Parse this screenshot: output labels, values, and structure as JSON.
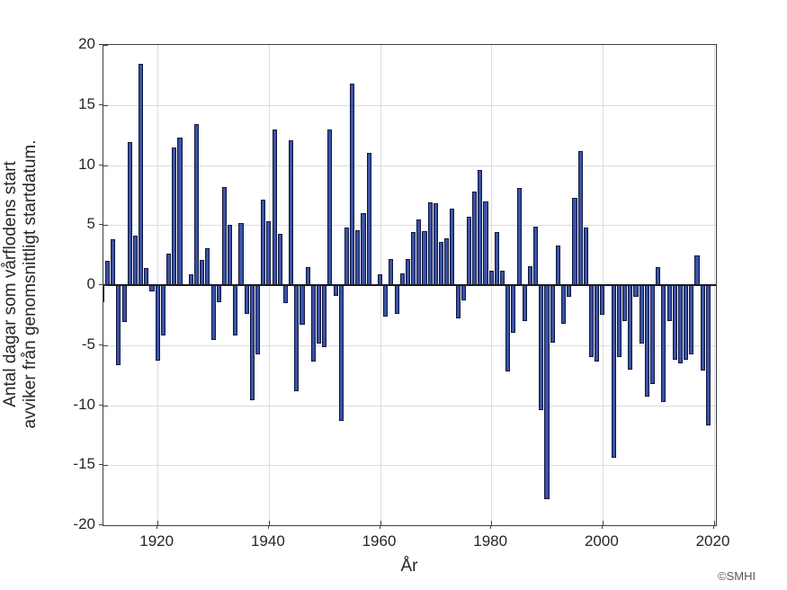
{
  "figure": {
    "ylabel_line1": "Antal dagar som vårflodens start",
    "ylabel_line2": "avviker från genomsnittligt startdatum.",
    "xlabel": "År",
    "copyright": "©SMHI"
  },
  "chart_data": {
    "type": "bar",
    "title": "",
    "xlabel": "År",
    "ylabel": "Antal dagar som vårflodens start avviker från genomsnittligt startdatum.",
    "ylim": [
      -20,
      20
    ],
    "xlim": [
      1910.26,
      2020.4
    ],
    "y_ticks": [
      20,
      15,
      10,
      5,
      0,
      -5,
      -10,
      -15,
      -20
    ],
    "x_ticks": [
      1920,
      1940,
      1960,
      1980,
      2000,
      2020
    ],
    "grid": true,
    "legend": "none",
    "bar_color": "#3A53A4",
    "bar_edge_color": "#10153E",
    "missing_years": [
      1925,
      1959,
      2001
    ],
    "x": [
      1910,
      1911,
      1912,
      1913,
      1914,
      1915,
      1916,
      1917,
      1918,
      1919,
      1920,
      1921,
      1922,
      1923,
      1924,
      1925,
      1926,
      1927,
      1928,
      1929,
      1930,
      1931,
      1932,
      1933,
      1934,
      1935,
      1936,
      1937,
      1938,
      1939,
      1940,
      1941,
      1942,
      1943,
      1944,
      1945,
      1946,
      1947,
      1948,
      1949,
      1950,
      1951,
      1952,
      1953,
      1954,
      1955,
      1956,
      1957,
      1958,
      1959,
      1960,
      1961,
      1962,
      1963,
      1964,
      1965,
      1966,
      1967,
      1968,
      1969,
      1970,
      1971,
      1972,
      1973,
      1974,
      1975,
      1976,
      1977,
      1978,
      1979,
      1980,
      1981,
      1982,
      1983,
      1984,
      1985,
      1986,
      1987,
      1988,
      1989,
      1990,
      1991,
      1992,
      1993,
      1994,
      1995,
      1996,
      1997,
      1998,
      1999,
      2000,
      2001,
      2002,
      2003,
      2004,
      2005,
      2006,
      2007,
      2008,
      2009,
      2010,
      2011,
      2012,
      2013,
      2014,
      2015,
      2016,
      2017,
      2018,
      2019
    ],
    "values": [
      -1.4,
      2.0,
      3.8,
      -6.7,
      -3.1,
      11.9,
      4.1,
      18.4,
      1.4,
      -0.5,
      -6.3,
      -4.2,
      2.6,
      11.5,
      12.3,
      0,
      0.9,
      13.4,
      2.1,
      3.1,
      -4.6,
      -1.4,
      8.2,
      5.0,
      -4.2,
      5.2,
      -2.4,
      -9.6,
      -5.8,
      7.1,
      5.3,
      13.0,
      4.3,
      -1.5,
      12.1,
      -8.8,
      -3.3,
      1.5,
      -6.4,
      -4.9,
      -5.2,
      13.0,
      -0.9,
      -11.3,
      4.8,
      16.8,
      4.6,
      6.0,
      11.0,
      0,
      0.9,
      -2.6,
      2.2,
      -2.4,
      1.0,
      2.2,
      4.4,
      5.5,
      4.5,
      6.9,
      6.8,
      3.6,
      3.9,
      6.4,
      -2.8,
      -1.3,
      5.7,
      7.8,
      9.6,
      7.0,
      1.2,
      4.4,
      1.2,
      -7.2,
      -4.0,
      8.1,
      -3.0,
      1.6,
      4.9,
      -10.4,
      -17.8,
      -4.8,
      3.3,
      -3.2,
      -1.0,
      7.3,
      11.2,
      4.8,
      -6.0,
      -6.4,
      -2.5,
      0,
      -14.4,
      -6.0,
      -3.0,
      -7.0,
      -1.0,
      -4.9,
      -9.3,
      -8.2,
      1.5,
      -9.7,
      -3.0,
      -6.2,
      -6.5,
      -6.2,
      -5.8,
      2.5,
      -7.1,
      -11.7
    ]
  }
}
